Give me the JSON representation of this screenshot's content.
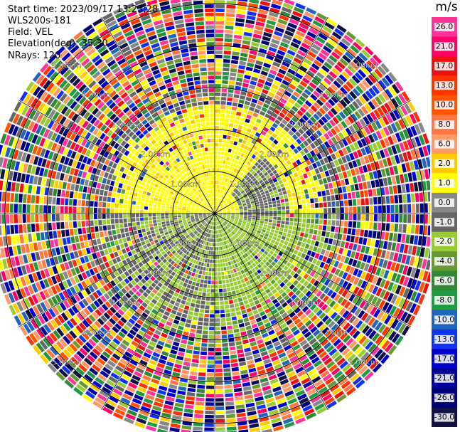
{
  "info": {
    "start_time": "Start time: 2023/09/17 13:23:28",
    "instrument": "WLS200s-181",
    "field": "Field: VEL",
    "elevation": "Elevation(deg): 35.30",
    "nrays": "NRays: 120"
  },
  "chart_data": {
    "type": "heatmap",
    "subtype": "polar-ppi",
    "nrays": 120,
    "range_rings_km": [
      1,
      2,
      3,
      4,
      5
    ],
    "ring_labels": [
      "1.00km",
      "2.00km",
      "3.00km",
      "4.00km",
      "5.00km"
    ],
    "max_range_km": 5.4,
    "colorbar": {
      "unit": "m/s",
      "ticks": [
        "26.0",
        "21.0",
        "17.0",
        "13.0",
        "10.0",
        "8.0",
        "6.0",
        "2.0",
        "1.0",
        "0.0",
        "-1.0",
        "-2.0",
        "-4.0",
        "-6.0",
        "-8.0",
        "-10.0",
        "-13.0",
        "-17.0",
        "-21.0",
        "-26.0",
        "-30.0"
      ],
      "colors": [
        "#ff3399",
        "#ff0066",
        "#ee1111",
        "#ff3300",
        "#ff5500",
        "#ff7744",
        "#ff9966",
        "#ffcc00",
        "#ffff00",
        "#888888",
        "#666666",
        "#99cc33",
        "#669933",
        "#338833",
        "#229944",
        "#2266bb",
        "#1133ee",
        "#0000cc",
        "#000099",
        "#000077",
        "#111144"
      ]
    }
  }
}
